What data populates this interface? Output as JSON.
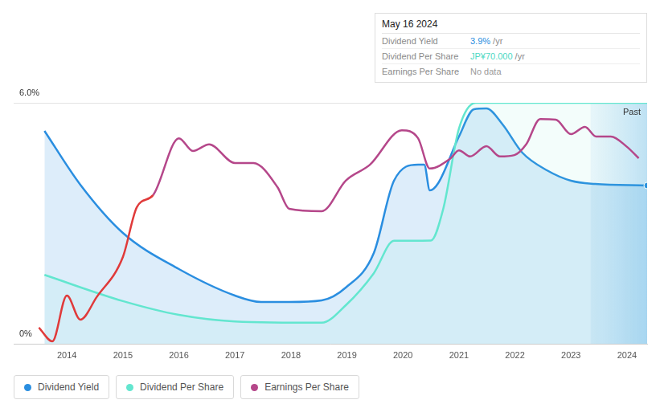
{
  "chart_data": {
    "type": "line",
    "xlim": [
      2013.05,
      2024.36
    ],
    "xticks": [
      2014,
      2015,
      2016,
      2017,
      2018,
      2019,
      2020,
      2021,
      2022,
      2023,
      2024
    ],
    "ylim": [
      0,
      6
    ],
    "yticks": [
      {
        "value": 0,
        "label": "0%"
      },
      {
        "value": 6,
        "label": "6.0%"
      }
    ],
    "y2lim": [
      0,
      70
    ],
    "tick_labels": "y",
    "grid": true,
    "past_from": 2023.35,
    "past_label": "Past",
    "tooltip": {
      "title": "May 16 2024",
      "rows": [
        {
          "name": "Dividend Yield",
          "value": "3.9%",
          "unit": "/yr",
          "color": "#2a8ee0"
        },
        {
          "name": "Dividend Per Share",
          "value": "JP¥70.000",
          "unit": "/yr",
          "color": "#4fd9c4"
        },
        {
          "name": "Earnings Per Share",
          "value": "No data",
          "color": "#9a9a9a"
        }
      ]
    },
    "series": [
      {
        "name": "Dividend Yield",
        "color": "#2a8ee0",
        "x": [
          2013.6,
          2014.24,
          2015.0,
          2016.0,
          2017.0,
          2017.47,
          2017.97,
          2018.55,
          2018.98,
          2019.48,
          2019.84,
          2020.27,
          2020.38,
          2020.48,
          2020.63,
          2021.0,
          2021.27,
          2021.49,
          2021.78,
          2022.13,
          2022.57,
          2023.0,
          2023.43,
          2024.36
        ],
        "values": [
          5.3,
          3.96,
          2.76,
          1.86,
          1.2,
          1.04,
          1.04,
          1.08,
          1.4,
          2.26,
          4.06,
          4.46,
          4.46,
          3.82,
          4.0,
          5.16,
          5.84,
          5.86,
          5.46,
          4.76,
          4.32,
          4.06,
          3.98,
          3.94
        ]
      },
      {
        "name": "Dividend Per Share",
        "color": "#63e6cf",
        "axis": "y2",
        "x": [
          2013.6,
          2015.0,
          2016.0,
          2017.0,
          2018.55,
          2018.98,
          2019.48,
          2019.84,
          2020.5,
          2020.72,
          2021.0,
          2021.3,
          2024.36
        ],
        "values": [
          20,
          12.4,
          8.4,
          6.5,
          6.1,
          11.2,
          20.5,
          29.9,
          30,
          39.2,
          62.5,
          70,
          70
        ]
      },
      {
        "name": "Earnings Per Share",
        "color": "#b5478a",
        "axis": "y2",
        "colors": [
          "#e03a3a",
          "#e03a3a",
          "#e03a3a",
          "#e03a3a",
          "#e03a3a",
          "#e03a3a",
          "#e03a3a",
          "#b5478a",
          "#b5478a",
          "#b5478a",
          "#b5478a",
          "#b5478a",
          "#b5478a",
          "#b5478a",
          "#b5478a",
          "#b5478a",
          "#b5478a",
          "#b5478a",
          "#b5478a",
          "#b5478a",
          "#b5478a",
          "#b5478a",
          "#b5478a",
          "#b5478a",
          "#b5478a",
          "#b5478a",
          "#b5478a",
          "#b5478a",
          "#b5478a",
          "#b5478a",
          "#b5478a",
          "#b5478a",
          "#b5478a",
          "#b5478a",
          "#b5478a",
          "#b5478a"
        ],
        "x": [
          2013.5,
          2013.74,
          2014.0,
          2014.24,
          2014.53,
          2015.0,
          2015.25,
          2015.54,
          2016.0,
          2016.25,
          2016.54,
          2017.0,
          2017.33,
          2017.76,
          2017.97,
          2018.55,
          2018.98,
          2019.41,
          2019.98,
          2020.27,
          2020.48,
          2020.84,
          2021.0,
          2021.2,
          2021.49,
          2021.73,
          2021.99,
          2022.2,
          2022.45,
          2022.73,
          2023.0,
          2023.25,
          2023.45,
          2023.71,
          2024.0,
          2024.21
        ],
        "values": [
          4.7,
          0.7,
          14,
          7,
          13.5,
          25.2,
          39.7,
          43.2,
          59.7,
          56,
          57.9,
          52.5,
          52.5,
          45.5,
          39.2,
          38.5,
          47.4,
          52,
          62,
          59.7,
          50.9,
          53.7,
          56.2,
          54.4,
          57.4,
          54.4,
          54.8,
          57.9,
          65.3,
          65.1,
          60.9,
          63,
          60.2,
          60.2,
          57.2,
          53.9
        ]
      }
    ]
  }
}
